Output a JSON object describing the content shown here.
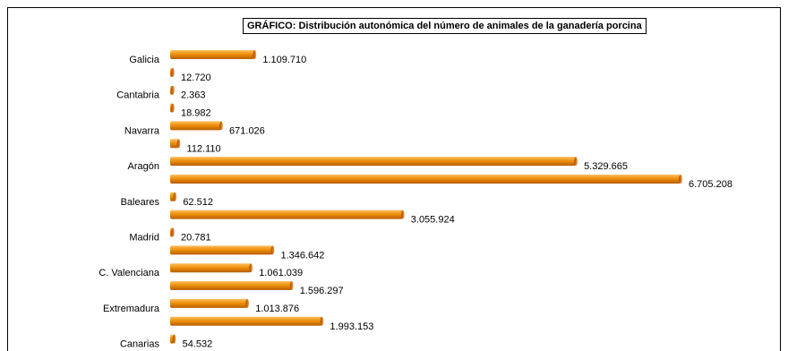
{
  "chart_data": {
    "type": "bar",
    "orientation": "horizontal",
    "title": "GRÁFICO: Distribución autonómica del número de animales de la ganadería porcina",
    "xlabel": "",
    "ylabel": "",
    "grid": false,
    "legend": "none",
    "bar_color": "#f0900a",
    "groups": [
      "Galicia",
      "Cantabria",
      "Navarra",
      "Aragón",
      "Baleares",
      "Madrid",
      "C. Valenciana",
      "Extremadura",
      "Canarias"
    ],
    "bars": [
      {
        "label": "1.109.710",
        "value": 1109710
      },
      {
        "label": "12.720",
        "value": 12720
      },
      {
        "label": "2.363",
        "value": 2363
      },
      {
        "label": "18.982",
        "value": 18982
      },
      {
        "label": "671.026",
        "value": 671026
      },
      {
        "label": "112.110",
        "value": 112110
      },
      {
        "label": "5.329.665",
        "value": 5329665
      },
      {
        "label": "6.705.208",
        "value": 6705208
      },
      {
        "label": "62.512",
        "value": 62512
      },
      {
        "label": "3.055.924",
        "value": 3055924
      },
      {
        "label": "20.781",
        "value": 20781
      },
      {
        "label": "1.346.642",
        "value": 1346642
      },
      {
        "label": "1.061.039",
        "value": 1061039
      },
      {
        "label": "1.596.297",
        "value": 1596297
      },
      {
        "label": "1.013.876",
        "value": 1013876
      },
      {
        "label": "1.993.153",
        "value": 1993153
      },
      {
        "label": "54.532",
        "value": 54532
      }
    ]
  }
}
